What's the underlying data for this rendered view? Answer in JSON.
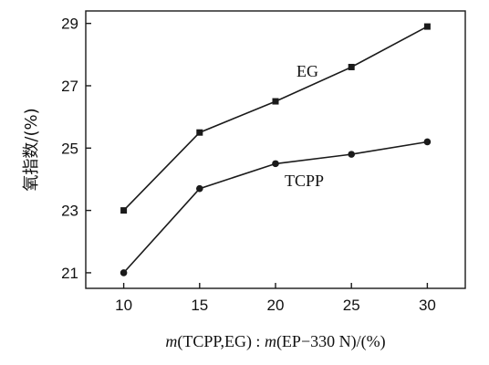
{
  "chart_data": {
    "type": "line",
    "x": [
      10,
      15,
      20,
      25,
      30
    ],
    "series": [
      {
        "name": "EG",
        "marker": "square",
        "values": [
          23.0,
          25.5,
          26.5,
          27.6,
          28.9
        ]
      },
      {
        "name": "TCPP",
        "marker": "circle",
        "values": [
          21.0,
          23.7,
          24.5,
          24.8,
          25.2
        ]
      }
    ],
    "xlabel_italic_m": "m",
    "xlabel_part1": "(TCPP,EG) : ",
    "xlabel_italic_m2": "m",
    "xlabel_part2": "(EP−330 N)/(%)",
    "ylabel": "氧指数/(%)",
    "xlim": [
      7.5,
      32.5
    ],
    "ylim": [
      20.5,
      29.4
    ],
    "xticks": [
      10,
      15,
      20,
      25,
      30
    ],
    "yticks": [
      21,
      23,
      25,
      27,
      29
    ],
    "grid": false,
    "line_color": "#1a1a1a"
  }
}
